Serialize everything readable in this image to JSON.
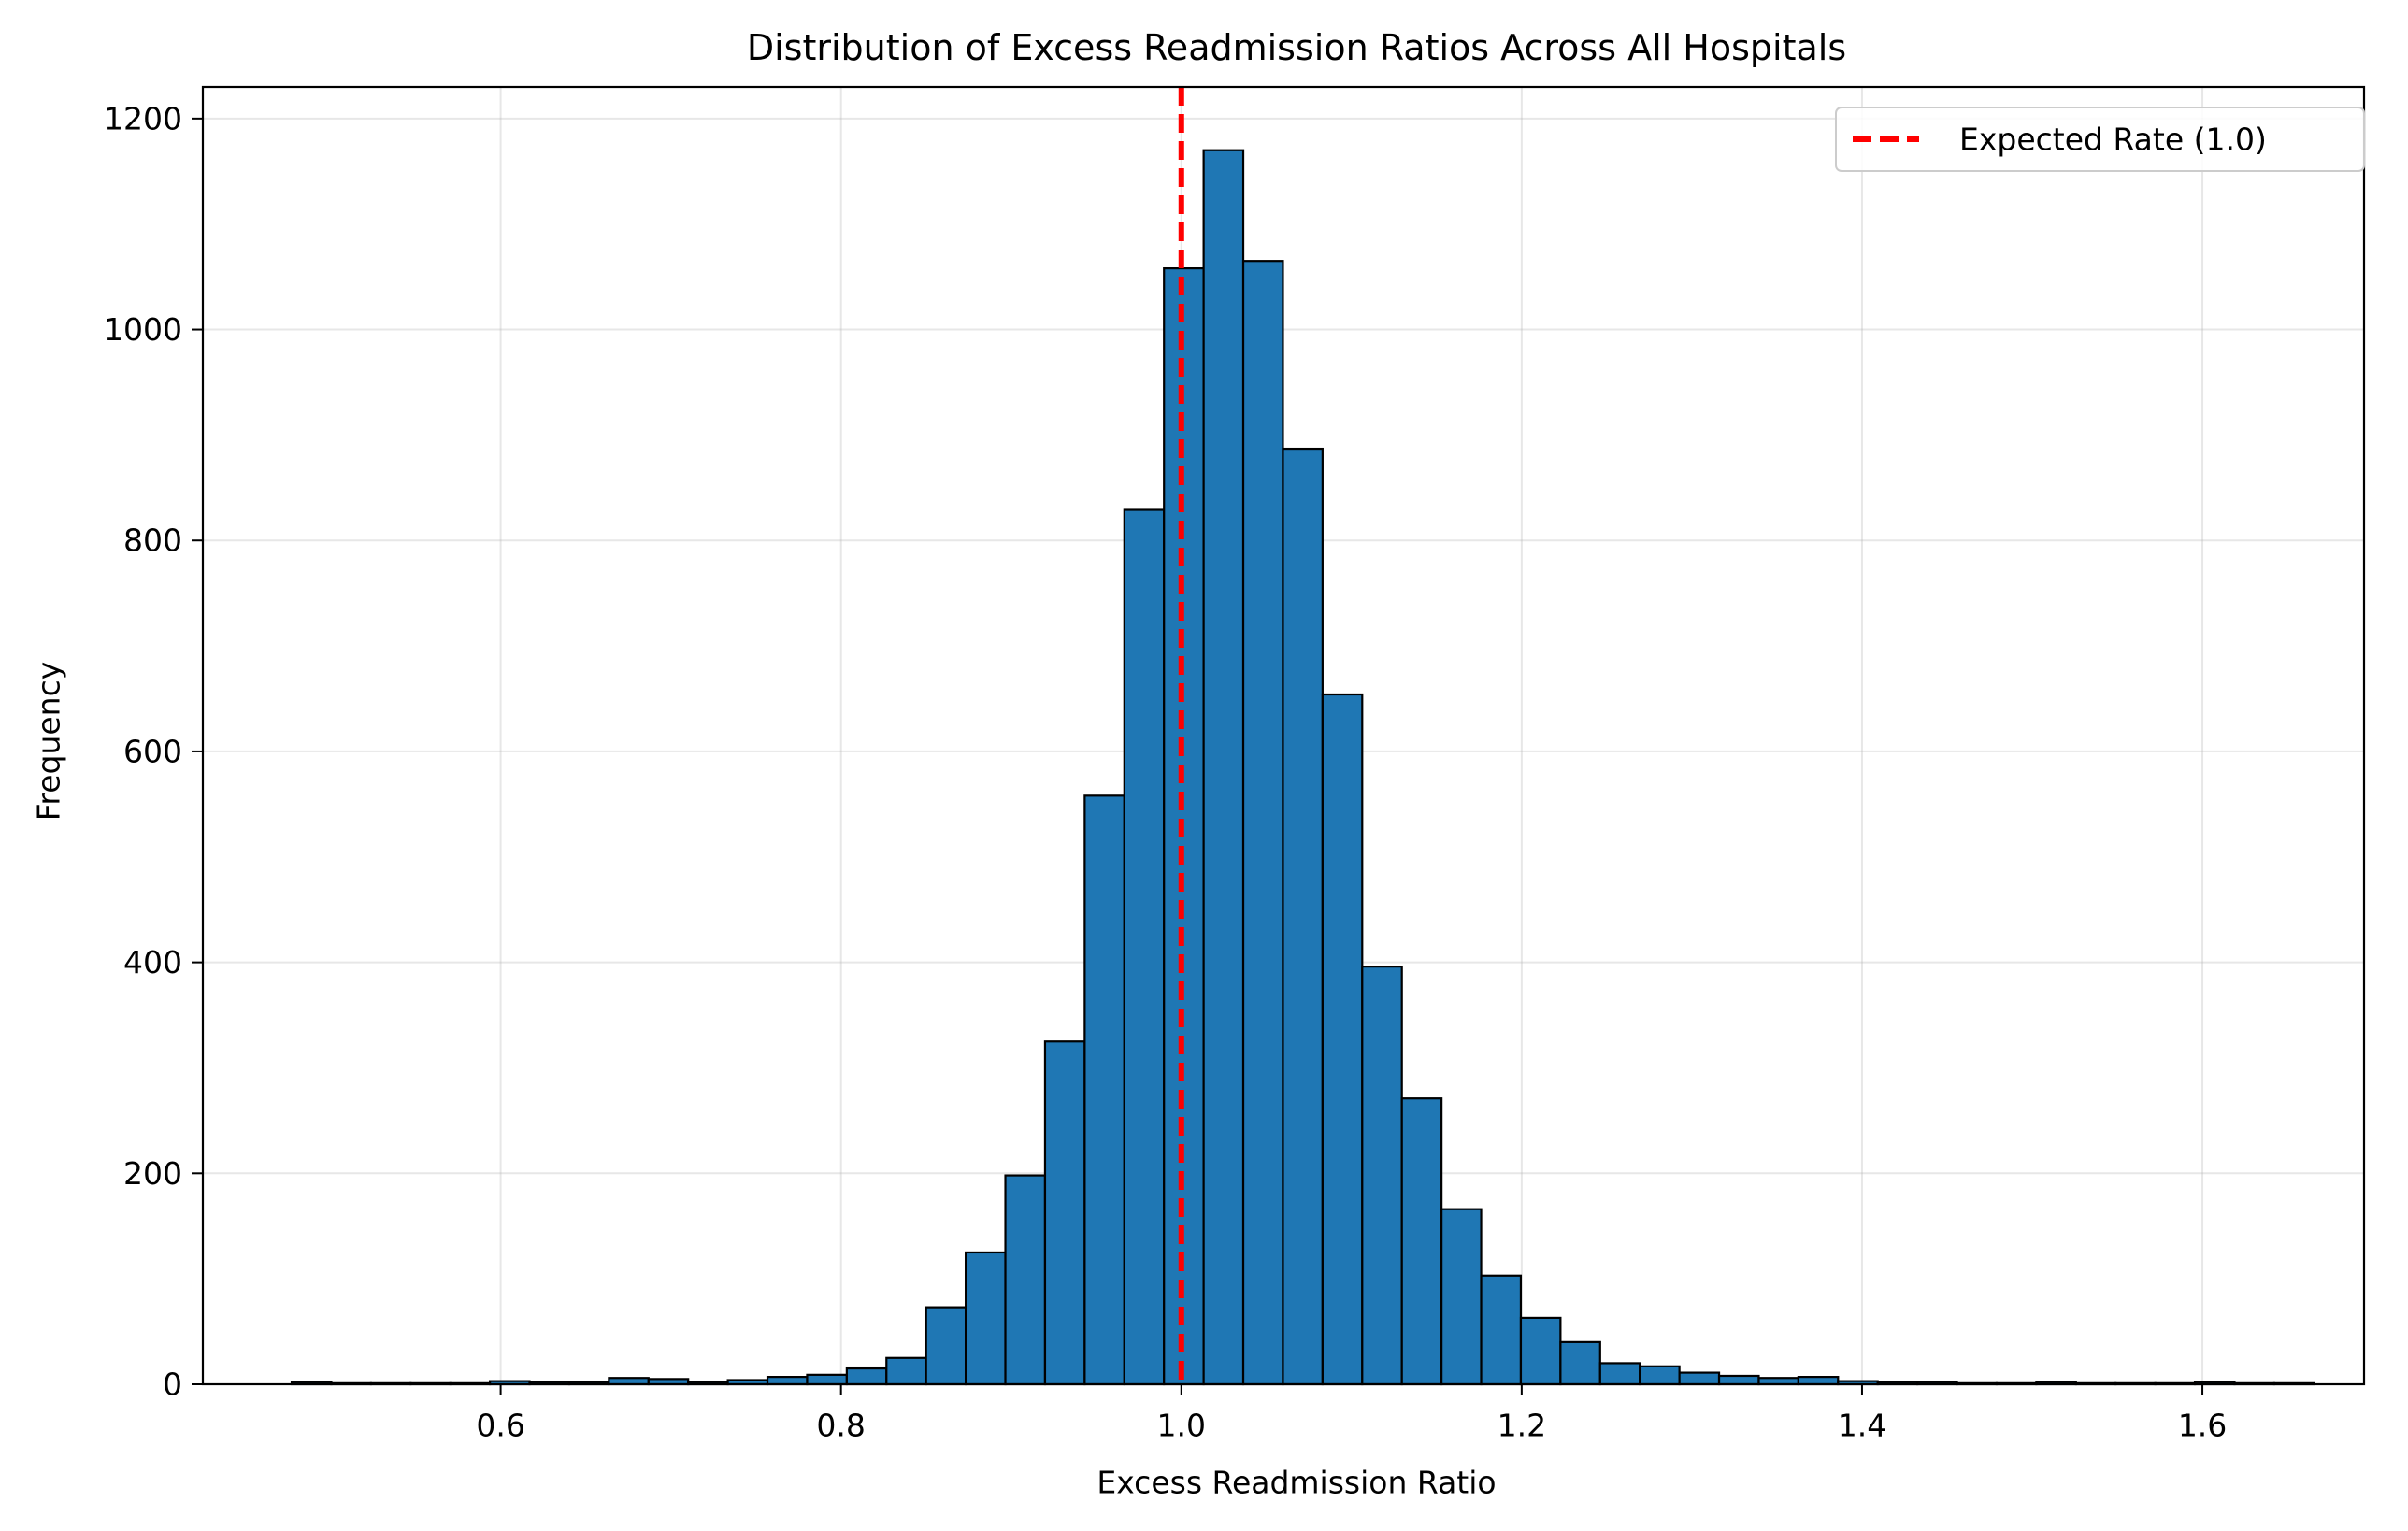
{
  "chart_data": {
    "type": "bar",
    "title": "Distribution of Excess Readmission Ratios Across All Hospitals",
    "xlabel": "Excess Readmission Ratio",
    "ylabel": "Frequency",
    "xlim": [
      0.425,
      1.695
    ],
    "ylim": [
      0,
      1230
    ],
    "x_ticks": [
      "0.6",
      "0.8",
      "1.0",
      "1.2",
      "1.4",
      "1.6"
    ],
    "y_ticks": [
      "0",
      "200",
      "400",
      "600",
      "800",
      "1000",
      "1200"
    ],
    "grid": true,
    "legend": {
      "position": "top-right",
      "entries": [
        {
          "label": "Expected Rate (1.0)",
          "color": "#ff0000",
          "style": "dashed"
        }
      ]
    },
    "reference_line": {
      "x": 1.0,
      "label": "Expected Rate (1.0)",
      "color": "#ff0000",
      "style": "dashed"
    },
    "bar_color": "#1f77b4",
    "edge_color": "#000000",
    "bins": {
      "start": 0.4772,
      "width": 0.0233,
      "counts": [
        2,
        1,
        1,
        1,
        1,
        3,
        2,
        2,
        6,
        5,
        2,
        4,
        7,
        9,
        15,
        25,
        73,
        125,
        198,
        325,
        558,
        829,
        1058,
        1170,
        1065,
        887,
        654,
        396,
        271,
        166,
        103,
        63,
        40,
        20,
        17,
        11,
        8,
        6,
        7,
        3,
        2,
        2,
        1,
        1,
        2,
        1,
        1,
        1,
        2,
        1,
        1
      ]
    }
  }
}
